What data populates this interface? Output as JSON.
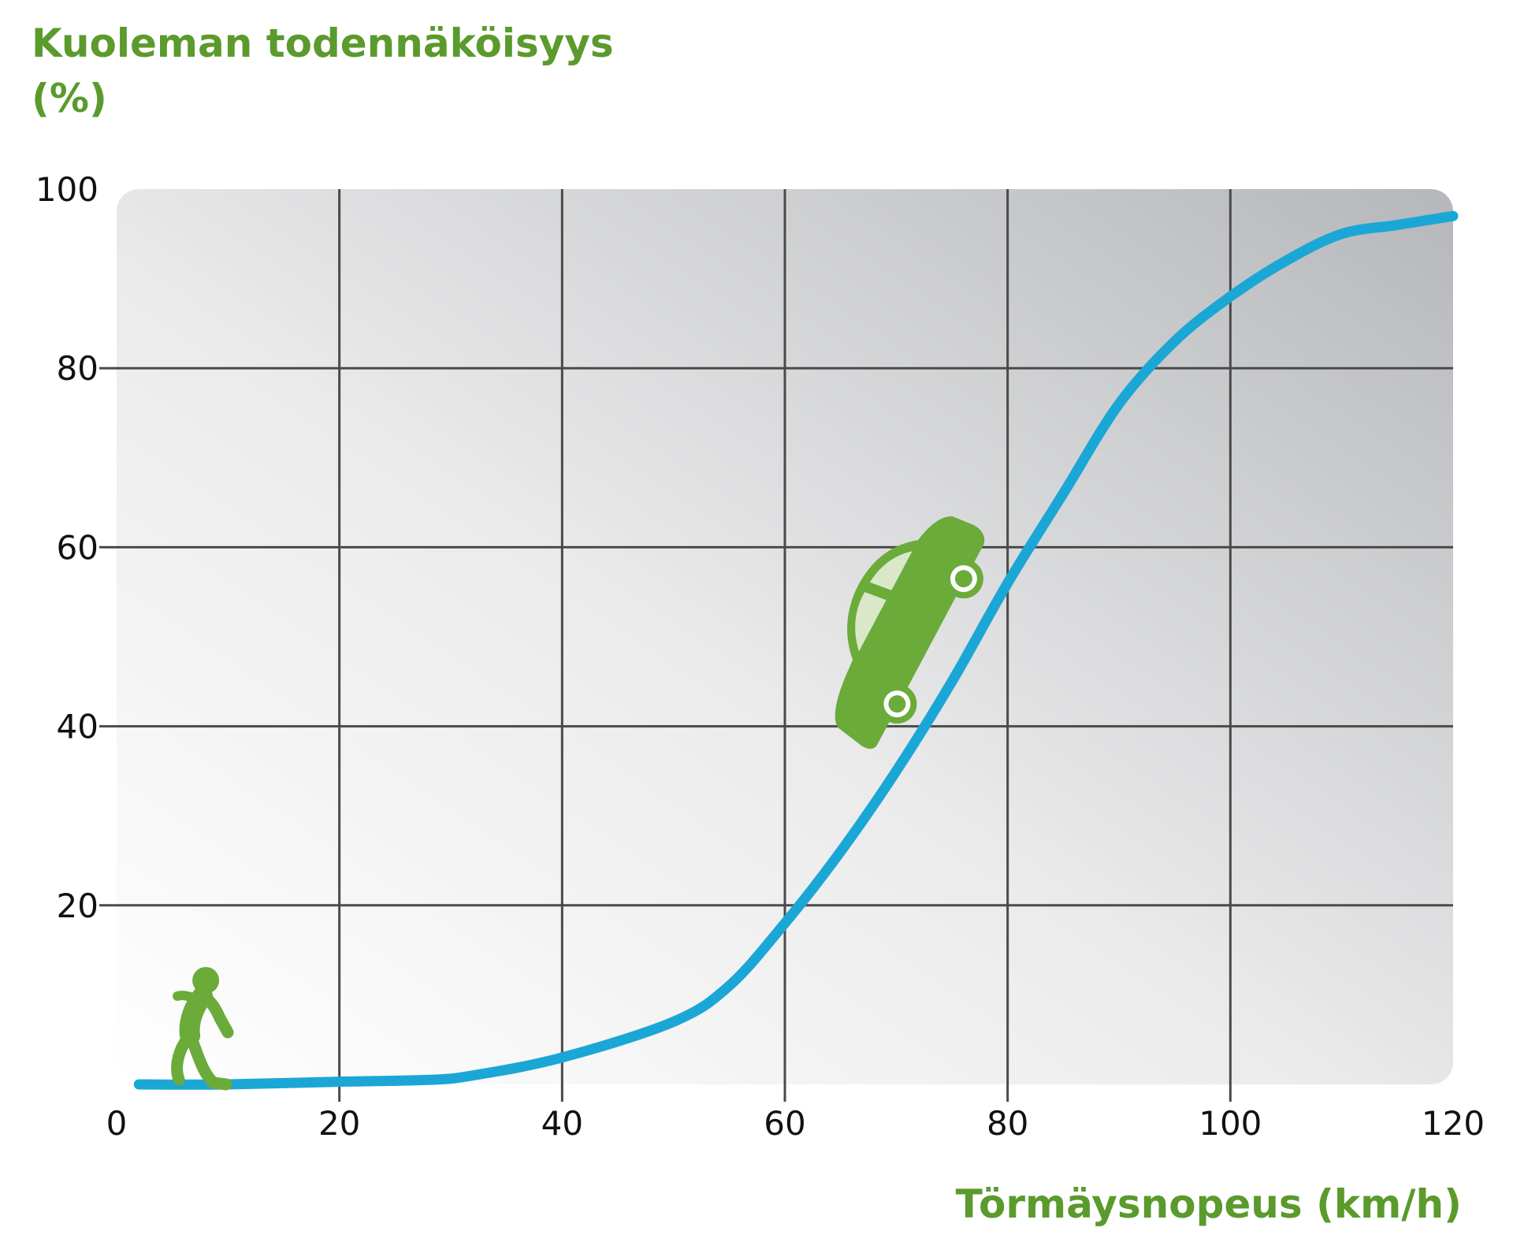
{
  "chart_data": {
    "type": "line",
    "ylabel_lines": [
      "Kuoleman todennäköisyys",
      "(%)"
    ],
    "xlabel": "Törmäysnopeus (km/h)",
    "xlim": [
      0,
      120
    ],
    "ylim": [
      0,
      100
    ],
    "x_ticks": [
      "0",
      "20",
      "40",
      "60",
      "80",
      "100",
      "120"
    ],
    "y_ticks": [
      "20",
      "40",
      "60",
      "80",
      "100"
    ],
    "grid": true,
    "series": [
      {
        "color": "#1aa7d6",
        "x": [
          2,
          10,
          20,
          28,
          32,
          40,
          50,
          55,
          60,
          65,
          70,
          75,
          80,
          85,
          90,
          95,
          100,
          105,
          110,
          115,
          120
        ],
        "y": [
          0,
          0,
          0.3,
          0.5,
          1,
          3,
          7,
          11,
          18,
          26,
          35,
          45,
          56,
          66,
          76,
          83,
          88,
          92,
          95,
          96,
          97
        ]
      }
    ],
    "accent_color": "#6aab3a",
    "annotations": [
      {
        "icon": "pedestrian-icon",
        "x": 8,
        "y": 0
      },
      {
        "icon": "car-icon",
        "x": 72,
        "y": 50
      }
    ]
  }
}
